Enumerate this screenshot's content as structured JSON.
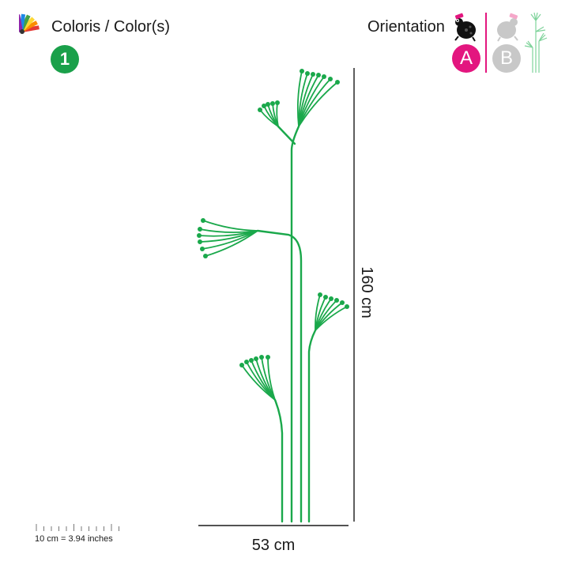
{
  "header": {
    "colors_label": "Coloris / Color(s)",
    "color_count": "1",
    "orientation_label": "Orientation",
    "orientation_options": [
      {
        "label": "A",
        "selected": true
      },
      {
        "label": "B",
        "selected": false
      }
    ]
  },
  "dimensions": {
    "height": "160 cm",
    "width": "53 cm"
  },
  "scale": {
    "label": "10 cm = 3.94 inches"
  },
  "colors": {
    "plant_green": "#1aa84b",
    "color_badge": "#1aa04a",
    "orientation_selected": "#e3167f",
    "orientation_unselected": "#c8c8c8",
    "dimension_line": "#1a1a1a"
  },
  "icons": {
    "palette": "color-palette-icon",
    "ladybug": "ladybug-icon",
    "sheep": "sheep-icon",
    "plant_preview": "plant-preview-icon"
  }
}
